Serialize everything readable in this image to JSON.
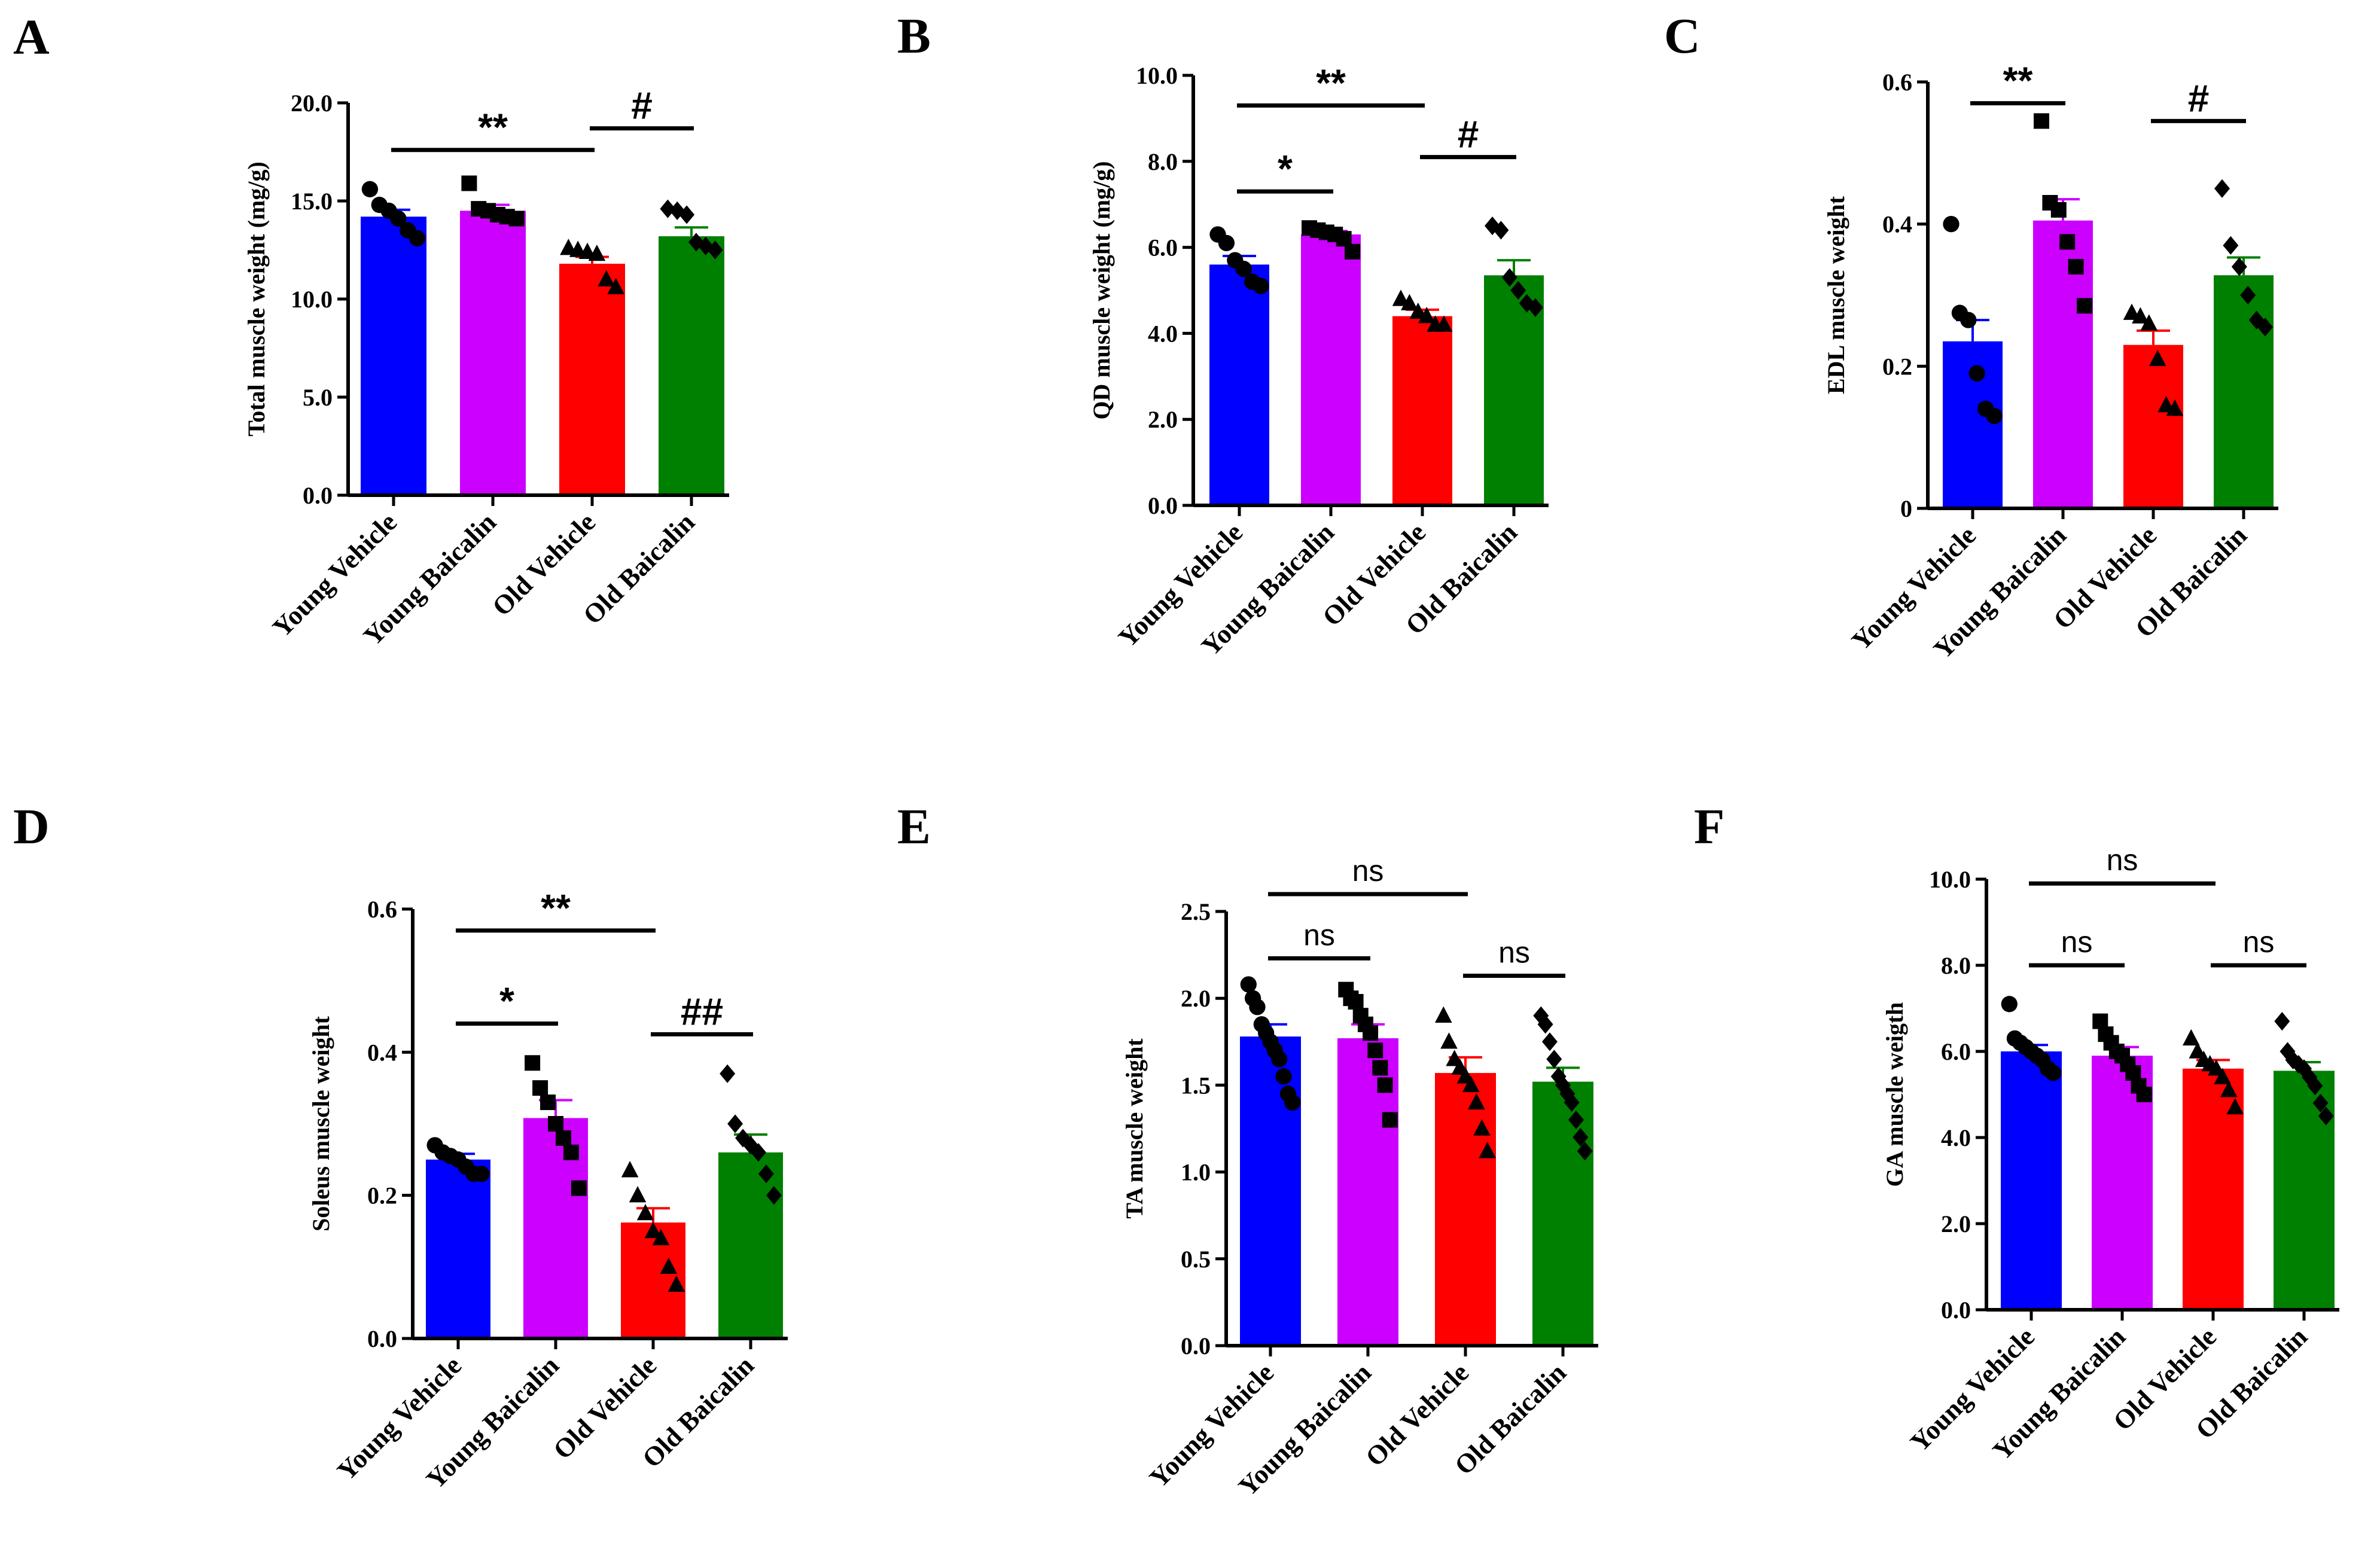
{
  "chart_data": [
    {
      "panel": "A",
      "type": "bar",
      "ylabel": "Total muscle weight (mg/g)",
      "ylim": [
        0,
        20
      ],
      "yticks": [
        "0.0",
        "5.0",
        "10.0",
        "15.0",
        "20.0"
      ],
      "categories": [
        "Young Vehicle",
        "Young Baicalin",
        "Old Vehicle",
        "Old Baicalin"
      ],
      "values": [
        14.2,
        14.5,
        11.8,
        13.2
      ],
      "sem": [
        0.35,
        0.3,
        0.35,
        0.45
      ],
      "points": [
        [
          15.6,
          14.8,
          14.5,
          14.1,
          13.5,
          13.1
        ],
        [
          15.9,
          14.6,
          14.5,
          14.3,
          14.2,
          14.1
        ],
        [
          12.6,
          12.5,
          12.4,
          12.3,
          11.0,
          10.6
        ],
        [
          14.6,
          14.5,
          14.3,
          12.9,
          12.7,
          12.5
        ]
      ],
      "markers": [
        "circle",
        "square",
        "triangle",
        "diamond"
      ],
      "significance": [
        {
          "from": 0,
          "to": 2,
          "label": "**",
          "y": 17.6
        },
        {
          "from": 2,
          "to": 3,
          "label": "#",
          "y": 18.7
        }
      ]
    },
    {
      "panel": "B",
      "type": "bar",
      "ylabel": "QD muscle weight (mg/g)",
      "ylim": [
        0,
        10
      ],
      "yticks": [
        "0.0",
        "2.0",
        "4.0",
        "6.0",
        "8.0",
        "10.0"
      ],
      "categories": [
        "Young Vehicle",
        "Young Baicalin",
        "Old Vehicle",
        "Old Baicalin"
      ],
      "values": [
        5.6,
        6.3,
        4.4,
        5.35
      ],
      "sem": [
        0.2,
        0.08,
        0.15,
        0.35
      ],
      "points": [
        [
          6.3,
          6.1,
          5.7,
          5.5,
          5.2,
          5.1
        ],
        [
          6.45,
          6.4,
          6.35,
          6.3,
          6.2,
          5.9
        ],
        [
          4.8,
          4.7,
          4.5,
          4.4,
          4.2,
          4.2
        ],
        [
          6.5,
          6.4,
          5.3,
          5.0,
          4.7,
          4.6
        ]
      ],
      "markers": [
        "circle",
        "square",
        "triangle",
        "diamond"
      ],
      "significance": [
        {
          "from": 0,
          "to": 2,
          "label": "**",
          "y": 9.3
        },
        {
          "from": 0,
          "to": 1,
          "label": "*",
          "y": 7.3
        },
        {
          "from": 2,
          "to": 3,
          "label": "#",
          "y": 8.1
        }
      ]
    },
    {
      "panel": "C",
      "type": "bar",
      "ylabel": "EDL muscle weight",
      "ylim": [
        0,
        0.6
      ],
      "yticks": [
        "0",
        "0.2",
        "0.4",
        "0.6"
      ],
      "categories": [
        "Young Vehicle",
        "Young Baicalin",
        "Old Vehicle",
        "Old Baicalin"
      ],
      "values": [
        0.235,
        0.405,
        0.23,
        0.328
      ],
      "sem": [
        0.03,
        0.03,
        0.02,
        0.025
      ],
      "points": [
        [
          0.4,
          0.275,
          0.265,
          0.19,
          0.14,
          0.13
        ],
        [
          0.545,
          0.43,
          0.42,
          0.375,
          0.34,
          0.285
        ],
        [
          0.275,
          0.27,
          0.26,
          0.21,
          0.145,
          0.14
        ],
        [
          0.45,
          0.37,
          0.34,
          0.3,
          0.265,
          0.255
        ]
      ],
      "markers": [
        "circle",
        "square",
        "triangle",
        "diamond"
      ],
      "significance": [
        {
          "from": 0,
          "to": 1,
          "label": "**",
          "y": 0.57
        },
        {
          "from": 2,
          "to": 3,
          "label": "#",
          "y": 0.545
        }
      ]
    },
    {
      "panel": "D",
      "type": "bar",
      "ylabel": "Soleus muscle weight",
      "ylim": [
        0,
        0.6
      ],
      "yticks": [
        "0.0",
        "0.2",
        "0.4",
        "0.6"
      ],
      "categories": [
        "Young Vehicle",
        "Young Baicalin",
        "Old Vehicle",
        "Old Baicalin"
      ],
      "values": [
        0.25,
        0.308,
        0.162,
        0.26
      ],
      "sem": [
        0.008,
        0.025,
        0.02,
        0.025
      ],
      "points": [
        [
          0.27,
          0.26,
          0.255,
          0.25,
          0.24,
          0.23,
          0.23
        ],
        [
          0.385,
          0.35,
          0.33,
          0.3,
          0.28,
          0.26,
          0.21
        ],
        [
          0.235,
          0.2,
          0.175,
          0.15,
          0.14,
          0.1,
          0.075
        ],
        [
          0.37,
          0.3,
          0.28,
          0.27,
          0.26,
          0.23,
          0.2
        ]
      ],
      "markers": [
        "circle",
        "square",
        "triangle",
        "diamond"
      ],
      "significance": [
        {
          "from": 0,
          "to": 2,
          "label": "**",
          "y": 0.57
        },
        {
          "from": 0,
          "to": 1,
          "label": "*",
          "y": 0.44
        },
        {
          "from": 2,
          "to": 3,
          "label": "##",
          "y": 0.425
        }
      ]
    },
    {
      "panel": "E",
      "type": "bar",
      "ylabel": "TA muscle weight",
      "ylim": [
        0,
        2.5
      ],
      "yticks": [
        "0.0",
        "0.5",
        "1.0",
        "1.5",
        "2.0",
        "2.5"
      ],
      "categories": [
        "Young Vehicle",
        "Young Baicalin",
        "Old Vehicle",
        "Old Baicalin"
      ],
      "values": [
        1.78,
        1.77,
        1.57,
        1.52
      ],
      "sem": [
        0.07,
        0.08,
        0.09,
        0.08
      ],
      "points": [
        [
          2.08,
          2.0,
          1.95,
          1.85,
          1.8,
          1.75,
          1.7,
          1.65,
          1.55,
          1.45,
          1.4
        ],
        [
          2.05,
          2.0,
          1.98,
          1.9,
          1.85,
          1.8,
          1.7,
          1.6,
          1.5,
          1.3
        ],
        [
          1.9,
          1.75,
          1.65,
          1.6,
          1.55,
          1.5,
          1.4,
          1.25,
          1.12
        ],
        [
          1.9,
          1.85,
          1.75,
          1.65,
          1.55,
          1.5,
          1.45,
          1.4,
          1.3,
          1.2,
          1.12
        ]
      ],
      "markers": [
        "circle",
        "square",
        "triangle",
        "diamond"
      ],
      "significance": [
        {
          "from": 0,
          "to": 2,
          "label": "ns",
          "y": 2.6
        },
        {
          "from": 0,
          "to": 1,
          "label": "ns",
          "y": 2.23
        },
        {
          "from": 2,
          "to": 3,
          "label": "ns",
          "y": 2.13
        }
      ]
    },
    {
      "panel": "F",
      "type": "bar",
      "ylabel": "GA muscle weigth",
      "ylim": [
        0,
        10
      ],
      "yticks": [
        "0.0",
        "2.0",
        "4.0",
        "6.0",
        "8.0",
        "10.0"
      ],
      "categories": [
        "Young Vehicle",
        "Young Baicalin",
        "Old Vehicle",
        "Old Baicalin"
      ],
      "values": [
        6.0,
        5.9,
        5.6,
        5.55
      ],
      "sem": [
        0.15,
        0.2,
        0.2,
        0.2
      ],
      "points": [
        [
          7.1,
          6.3,
          6.2,
          6.1,
          6.0,
          5.9,
          5.8,
          5.6,
          5.5
        ],
        [
          6.7,
          6.4,
          6.2,
          6.0,
          5.9,
          5.7,
          5.5,
          5.2,
          5.0
        ],
        [
          6.3,
          6.0,
          5.8,
          5.7,
          5.6,
          5.4,
          5.1,
          4.7
        ],
        [
          6.7,
          6.0,
          5.8,
          5.7,
          5.6,
          5.4,
          5.2,
          4.8,
          4.5
        ]
      ],
      "markers": [
        "circle",
        "square",
        "triangle",
        "diamond"
      ],
      "significance": [
        {
          "from": 0,
          "to": 2,
          "label": "ns",
          "y": 9.9
        },
        {
          "from": 0,
          "to": 1,
          "label": "ns",
          "y": 8.0
        },
        {
          "from": 2,
          "to": 3,
          "label": "ns",
          "y": 8.0
        }
      ]
    }
  ],
  "colors": {
    "young_vehicle": "#0000ff",
    "young_baicalin": "#cc00ff",
    "old_vehicle": "#ff0000",
    "old_baicalin": "#008000",
    "text": "#000000"
  }
}
